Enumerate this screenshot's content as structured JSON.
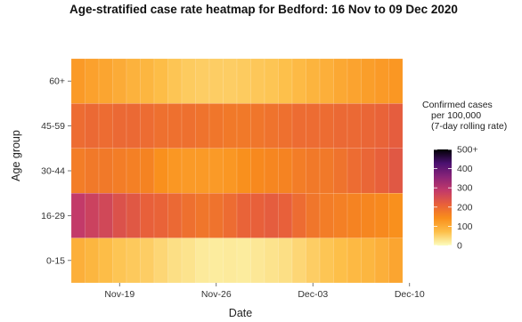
{
  "chart_data": {
    "type": "heatmap",
    "title": "Age-stratified case rate heatmap for Bedford: 16 Nov to 09 Dec 2020",
    "xlabel": "Date",
    "ylabel": "Age group",
    "x_ticks": [
      "Nov-19",
      "Nov-26",
      "Dec-03",
      "Dec-10"
    ],
    "x_dates_start": "2020-11-16",
    "x_dates_end": "2020-12-09",
    "rows": [
      "60+",
      "45-59",
      "30-44",
      "16-29",
      "0-15"
    ],
    "values": [
      [
        125,
        115,
        110,
        100,
        90,
        85,
        75,
        65,
        58,
        55,
        55,
        55,
        58,
        62,
        65,
        70,
        78,
        88,
        95,
        105,
        112,
        120,
        125,
        130
      ],
      [
        195,
        200,
        195,
        200,
        200,
        195,
        190,
        190,
        190,
        185,
        180,
        175,
        175,
        180,
        185,
        190,
        195,
        195,
        195,
        200,
        200,
        205,
        210,
        220
      ],
      [
        170,
        175,
        175,
        170,
        165,
        160,
        140,
        130,
        125,
        125,
        125,
        130,
        140,
        150,
        155,
        160,
        170,
        175,
        175,
        185,
        195,
        205,
        215,
        230
      ],
      [
        285,
        270,
        260,
        240,
        230,
        215,
        210,
        200,
        190,
        180,
        185,
        195,
        210,
        215,
        220,
        215,
        195,
        180,
        170,
        165,
        160,
        155,
        150,
        140
      ],
      [
        95,
        85,
        75,
        65,
        60,
        55,
        45,
        35,
        30,
        22,
        20,
        22,
        20,
        25,
        30,
        35,
        45,
        55,
        65,
        72,
        80,
        85,
        95,
        110
      ]
    ],
    "color_scale": {
      "min": 0,
      "max": 500,
      "stops": [
        "#fcfdbf",
        "#fdbf49",
        "#f98e1b",
        "#e8603a",
        "#c33a69",
        "#8a2478",
        "#4a1070",
        "#000004"
      ]
    },
    "legend": {
      "title_lines": [
        "Confirmed cases",
        "per 100,000",
        "(7-day rolling rate)"
      ],
      "ticks": [
        "0",
        "100",
        "200",
        "300",
        "400",
        "500+"
      ],
      "placement": "right"
    }
  }
}
